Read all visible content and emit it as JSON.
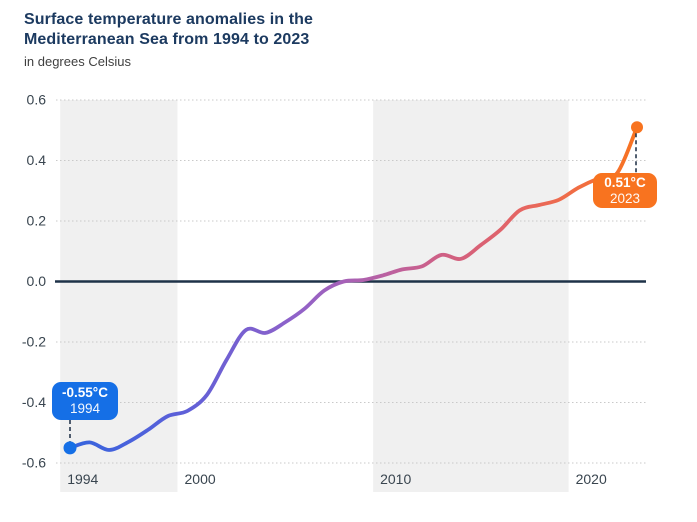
{
  "header": {
    "title_line1": "Surface temperature anomalies in the",
    "title_line2": "Mediterranean Sea from 1994 to 2023",
    "subtitle": "in degrees Celsius"
  },
  "annotations": {
    "start": {
      "value": -0.55,
      "year": 1994,
      "value_label": "-0.55°C",
      "year_label": "1994",
      "color": "#156fe6"
    },
    "end": {
      "value": 0.51,
      "year": 2023,
      "value_label": "0.51°C",
      "year_label": "2023",
      "color": "#f8731f"
    }
  },
  "chart_data": {
    "type": "line",
    "title": "Surface temperature anomalies in the Mediterranean Sea from 1994 to 2023",
    "subtitle": "in degrees Celsius",
    "xlabel": "",
    "ylabel": "degrees Celsius",
    "x": [
      1994,
      1995,
      1996,
      1997,
      1998,
      1999,
      2000,
      2001,
      2002,
      2003,
      2004,
      2005,
      2006,
      2007,
      2008,
      2009,
      2010,
      2011,
      2012,
      2013,
      2014,
      2015,
      2016,
      2017,
      2018,
      2019,
      2020,
      2021,
      2022,
      2023
    ],
    "values": [
      -0.55,
      -0.532,
      -0.557,
      -0.53,
      -0.49,
      -0.445,
      -0.428,
      -0.375,
      -0.26,
      -0.16,
      -0.17,
      -0.135,
      -0.09,
      -0.03,
      0.0,
      0.005,
      0.02,
      0.04,
      0.05,
      0.088,
      0.075,
      0.12,
      0.17,
      0.235,
      0.253,
      0.27,
      0.31,
      0.34,
      0.36,
      0.51
    ],
    "ylim": [
      -0.6,
      0.6
    ],
    "xlim": [
      1993.3,
      2023.5
    ],
    "yticks": [
      0.6,
      0.4,
      0.2,
      0.0,
      -0.2,
      -0.4,
      -0.6
    ],
    "ytick_labels": [
      "0.6",
      "0.4",
      "0.2",
      "0.0",
      "-0.2",
      "-0.4",
      "-0.6"
    ],
    "xticks": [
      1994,
      2000,
      2010,
      2020
    ],
    "bands": [
      [
        1993.5,
        1999.5
      ],
      [
        2009.5,
        2019.5
      ]
    ],
    "grid": "dotted-horizontal",
    "legend": "none",
    "zero_line": true,
    "gradient_stops": [
      {
        "offset": 0.0,
        "color": "#3564dd"
      },
      {
        "offset": 0.1,
        "color": "#4862dc"
      },
      {
        "offset": 0.2,
        "color": "#5e60d8"
      },
      {
        "offset": 0.3,
        "color": "#7760d0"
      },
      {
        "offset": 0.4,
        "color": "#9062c9"
      },
      {
        "offset": 0.48,
        "color": "#a561b8"
      },
      {
        "offset": 0.56,
        "color": "#bb61a0"
      },
      {
        "offset": 0.64,
        "color": "#cc6089"
      },
      {
        "offset": 0.72,
        "color": "#d96175"
      },
      {
        "offset": 0.8,
        "color": "#e66661"
      },
      {
        "offset": 0.89,
        "color": "#f06d45"
      },
      {
        "offset": 1.0,
        "color": "#f87320"
      }
    ],
    "colors": {
      "band": "#f0f0f0",
      "grid": "#c9c9c9",
      "zero_line": "#1e3248",
      "axis_label": "#39454f",
      "connector": "#27384d",
      "background": "#ffffff"
    }
  }
}
